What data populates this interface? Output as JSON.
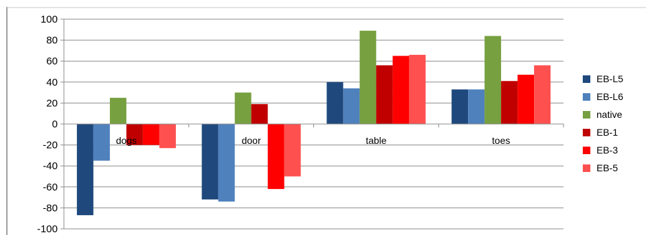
{
  "chart_data": {
    "type": "bar",
    "categories": [
      "dogs",
      "door",
      "table",
      "toes"
    ],
    "series": [
      {
        "name": "EB-L5",
        "color": "#1f497d",
        "values": [
          -87,
          -72,
          40,
          33
        ]
      },
      {
        "name": "EB-L6",
        "color": "#4f81bd",
        "values": [
          -35,
          -74,
          34,
          33
        ]
      },
      {
        "name": "native",
        "color": "#77a040",
        "values": [
          25,
          30,
          89,
          84
        ]
      },
      {
        "name": "EB-1",
        "color": "#c00000",
        "values": [
          -20,
          19,
          56,
          41
        ]
      },
      {
        "name": "EB-3",
        "color": "#ff0000",
        "values": [
          -20,
          -62,
          65,
          47
        ]
      },
      {
        "name": "EB-5",
        "color": "#ff5050",
        "values": [
          -23,
          -50,
          66,
          56
        ]
      }
    ],
    "yticks": [
      "100",
      "80",
      "60",
      "40",
      "20",
      "0",
      "-20",
      "-40",
      "-60",
      "-80",
      "-100"
    ],
    "ylim": [
      -100,
      100
    ],
    "grid": true,
    "legend": "right",
    "title": "",
    "xlabel": "",
    "ylabel": ""
  }
}
